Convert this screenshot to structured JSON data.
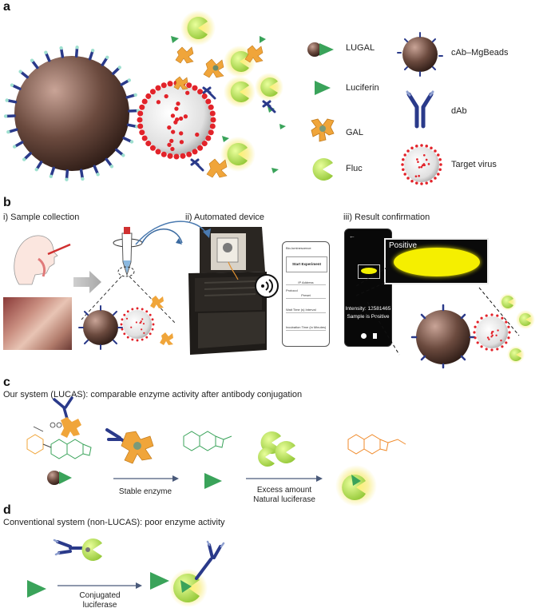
{
  "panels": {
    "a": {
      "letter": "a"
    },
    "b": {
      "letter": "b"
    },
    "c": {
      "letter": "c"
    },
    "d": {
      "letter": "d"
    }
  },
  "legend": {
    "lugal": "LUGAL",
    "luciferin": "Luciferin",
    "gal": "GAL",
    "fluc": "Fluc",
    "cab_mgbeads": "cAb–MgBeads",
    "dab": "dAb",
    "target_virus": "Target virus"
  },
  "steps": {
    "sample_collection": "i) Sample collection",
    "automated_device": "ii) Automated device",
    "result_confirmation": "iii) Result confirmation"
  },
  "app_screen": {
    "title": "Bio-luminescence",
    "start_button": "Start Experiment",
    "ip_label": "IP Address",
    "protocol_label": "Protocol",
    "protocol_value": "Preset",
    "wait_label": "Wait Time (s) Interval",
    "incubation_label": "Incubation Time (in Minutes)"
  },
  "result_screen": {
    "positive": "Positive",
    "intensity": "Intensity: 12581465",
    "status": "Sample is Positive"
  },
  "panel_c": {
    "caption": "Our system (LUCAS): comparable enzyme activity after antibody conjugation",
    "arrow1": "Stable enzyme",
    "arrow2_line1": "Excess amount",
    "arrow2_line2": "Natural luciferase"
  },
  "panel_d": {
    "caption": "Conventional system (non-LUCAS): poor enzyme activity",
    "arrow_line1": "Conjugated",
    "arrow_line2": "luciferase"
  },
  "colors": {
    "bead": "#6b4a3e",
    "virus": "#e2232a",
    "gal": "#f0a53a",
    "fluc": "#c6e85a",
    "luciferin": "#3aa35a",
    "antibody": "#2a3a8a"
  }
}
